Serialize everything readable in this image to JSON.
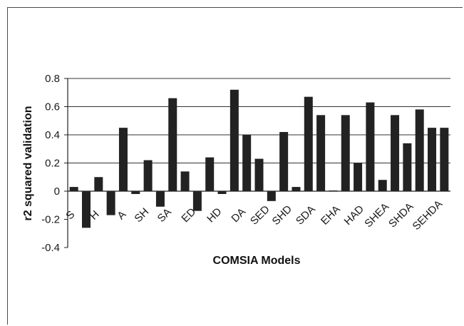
{
  "chart_data": {
    "type": "bar",
    "title": "",
    "xlabel": "COMSIA Models",
    "ylabel": "r2 squared validation",
    "ylim": [
      -0.4,
      0.8
    ],
    "yticks": [
      -0.4,
      -0.2,
      0,
      0.2,
      0.4,
      0.6,
      0.8
    ],
    "ytick_labels": [
      "-0.4",
      "-0.2",
      "0",
      "0.2",
      "0.4",
      "0.6",
      "0.8"
    ],
    "grid": true,
    "bar_color": "#222222",
    "category_labels": [
      "S",
      "H",
      "A",
      "SH",
      "SA",
      "ED",
      "HD",
      "DA",
      "SED",
      "SHD",
      "SDA",
      "EHA",
      "HAD",
      "SHEA",
      "SHDA",
      "SEHDA"
    ],
    "values": [
      0.03,
      -0.26,
      0.1,
      -0.17,
      0.45,
      -0.02,
      0.22,
      -0.11,
      0.66,
      0.14,
      -0.14,
      0.24,
      -0.02,
      0.72,
      0.4,
      0.23,
      -0.07,
      0.42,
      0.03,
      0.67,
      0.54,
      0.005,
      0.54,
      0.2,
      0.63,
      0.08,
      0.54,
      0.34,
      0.58,
      0.45,
      0.45
    ]
  }
}
